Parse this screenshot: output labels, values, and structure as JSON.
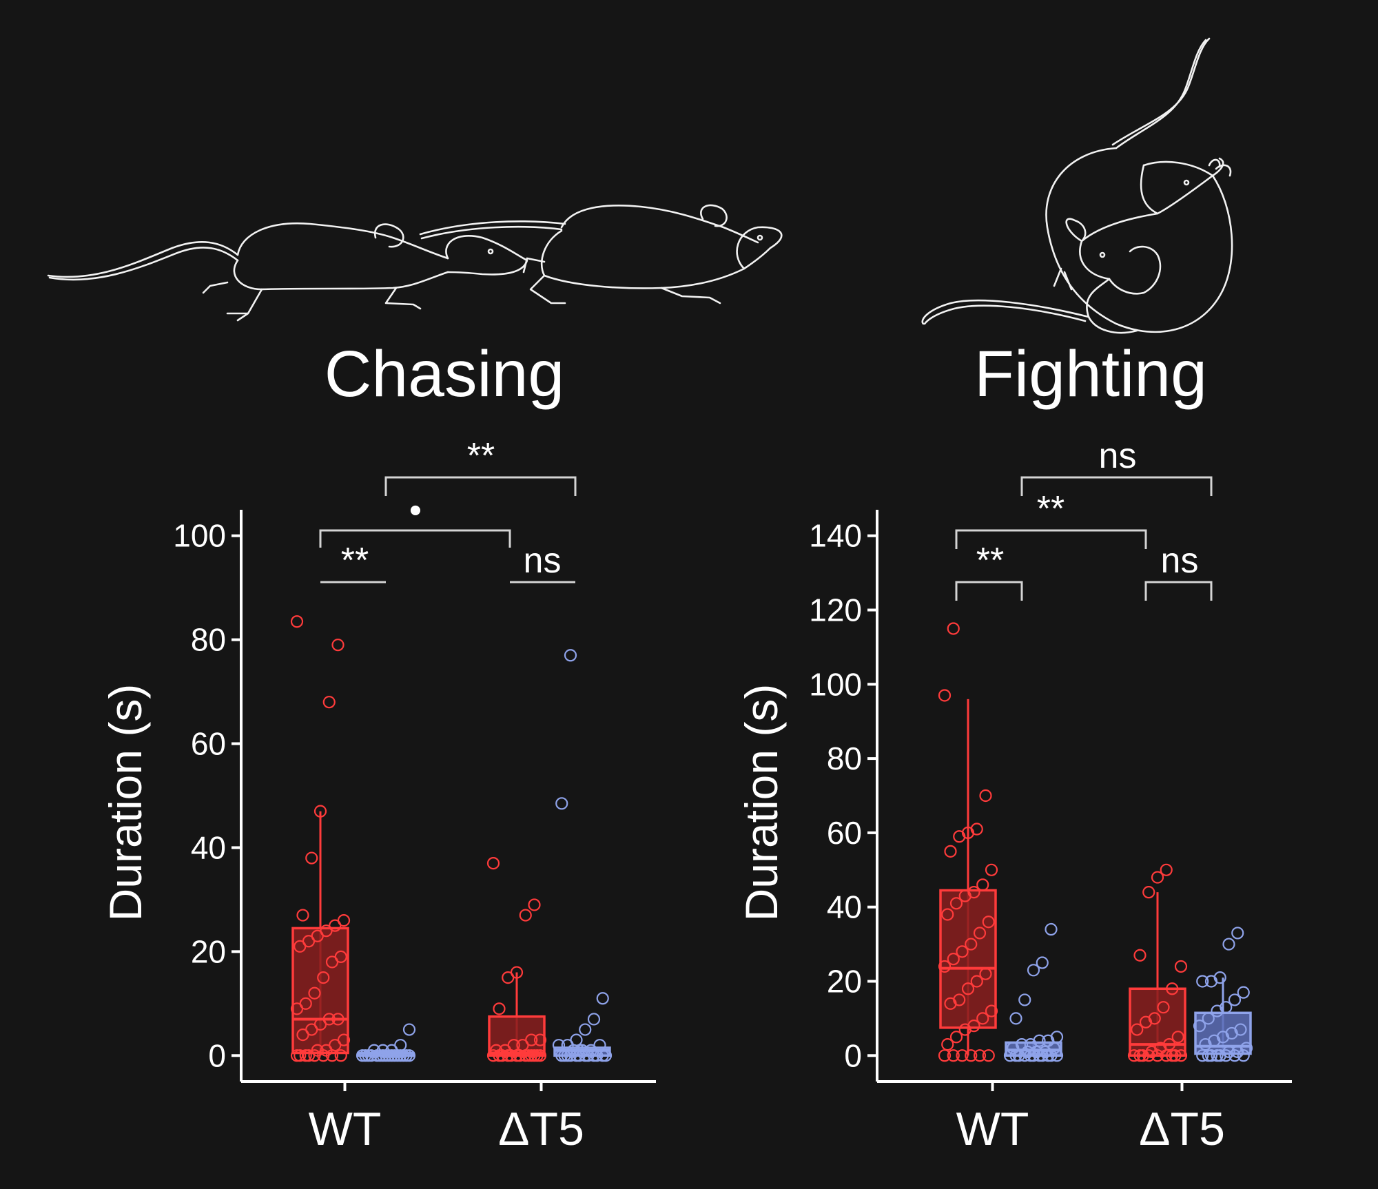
{
  "colors": {
    "background": "#151515",
    "wt_fill": "#8a1f1f",
    "wt_stroke": "#ff3b3b",
    "dt5_fill": "#5d6fb8",
    "dt5_stroke": "#8fa3ea",
    "text": "#ffffff",
    "bracket": "#d4d4d4"
  },
  "icons": [
    "chasing-mice-illustration",
    "fighting-mice-illustration"
  ],
  "chart_data": [
    {
      "type": "box",
      "title": "Chasing",
      "ylabel": "Duration (s)",
      "xlabel": "",
      "ylim": [
        -5,
        105
      ],
      "yticks": [
        "0",
        "20",
        "40",
        "60",
        "80",
        "100"
      ],
      "categories": [
        "WT",
        "ΔT5"
      ],
      "series": [
        {
          "name": "red",
          "color": "#ff3b3b",
          "boxes": [
            {
              "category": "WT",
              "q1": 0.5,
              "median": 7,
              "q3": 24.5,
              "whisker_low": 0,
              "whisker_high": 47,
              "points": [
                0,
                0,
                0,
                0,
                0,
                0,
                0,
                0,
                1,
                1,
                2,
                3,
                4,
                5,
                6,
                7,
                7,
                9,
                10,
                12,
                15,
                18,
                19,
                21,
                22,
                23,
                24,
                25,
                26,
                27,
                38,
                47,
                68,
                79,
                83.5
              ]
            },
            {
              "category": "ΔT5",
              "q1": 0,
              "median": 0.5,
              "q3": 7.5,
              "whisker_low": 0,
              "whisker_high": 16,
              "points": [
                0,
                0,
                0,
                0,
                0,
                0,
                0,
                0,
                0,
                0,
                0,
                0,
                0,
                1,
                1,
                2,
                2,
                3,
                3,
                9,
                15,
                16,
                27,
                29,
                37
              ]
            }
          ]
        },
        {
          "name": "blue",
          "color": "#8fa3ea",
          "boxes": [
            {
              "category": "WT",
              "q1": 0,
              "median": 0,
              "q3": 0.5,
              "whisker_low": 0,
              "whisker_high": 1,
              "points": [
                0,
                0,
                0,
                0,
                0,
                0,
                0,
                0,
                0,
                0,
                0,
                0,
                0,
                0,
                0,
                0,
                1,
                1,
                1,
                2,
                5
              ]
            },
            {
              "category": "ΔT5",
              "q1": 0,
              "median": 1,
              "q3": 1.5,
              "whisker_low": 0,
              "whisker_high": 2,
              "points": [
                0,
                0,
                0,
                0,
                0,
                0,
                0,
                0,
                0,
                0,
                0,
                0,
                1,
                1,
                1,
                2,
                2,
                2,
                3,
                5,
                7,
                11,
                48.5,
                77
              ]
            }
          ]
        }
      ],
      "significance": [
        {
          "label": "**",
          "from": "WT red",
          "to": "WT blue"
        },
        {
          "label": "ns",
          "from": "ΔT5 red",
          "to": "ΔT5 blue"
        },
        {
          "label": "•",
          "from": "WT red",
          "to": "ΔT5 red"
        },
        {
          "label": "**",
          "from": "WT blue",
          "to": "ΔT5 blue"
        }
      ]
    },
    {
      "type": "box",
      "title": "Fighting",
      "ylabel": "Duration (s)",
      "xlabel": "",
      "ylim": [
        -7,
        147
      ],
      "yticks": [
        "0",
        "20",
        "40",
        "60",
        "80",
        "100",
        "120",
        "140"
      ],
      "categories": [
        "WT",
        "ΔT5"
      ],
      "series": [
        {
          "name": "red",
          "color": "#ff3b3b",
          "boxes": [
            {
              "category": "WT",
              "q1": 7.5,
              "median": 23.5,
              "q3": 44.5,
              "whisker_low": 0,
              "whisker_high": 96,
              "points": [
                0,
                0,
                0,
                0,
                0,
                0,
                3,
                5,
                7,
                8,
                10,
                12,
                14,
                15,
                18,
                20,
                22,
                24,
                26,
                28,
                30,
                33,
                36,
                38,
                41,
                43,
                44,
                46,
                50,
                55,
                59,
                60,
                61,
                70,
                97,
                115
              ]
            },
            {
              "category": "ΔT5",
              "q1": 0,
              "median": 3,
              "q3": 18,
              "whisker_low": 0,
              "whisker_high": 44,
              "points": [
                0,
                0,
                0,
                0,
                0,
                0,
                0,
                0,
                0,
                1,
                2,
                3,
                5,
                7,
                9,
                10,
                13,
                18,
                24,
                27,
                44,
                48,
                50
              ]
            }
          ]
        },
        {
          "name": "blue",
          "color": "#8fa3ea",
          "boxes": [
            {
              "category": "WT",
              "q1": 0,
              "median": 1.5,
              "q3": 3.5,
              "whisker_low": 0,
              "whisker_high": 4,
              "points": [
                0,
                0,
                0,
                0,
                0,
                0,
                0,
                0,
                0,
                0,
                0,
                1,
                1,
                1,
                2,
                2,
                3,
                3,
                4,
                4,
                5,
                10,
                15,
                23,
                25,
                34
              ]
            },
            {
              "category": "ΔT5",
              "q1": 0.5,
              "median": 2.5,
              "q3": 11.5,
              "whisker_low": 0,
              "whisker_high": 21,
              "points": [
                0,
                0,
                0,
                0,
                0,
                0,
                0,
                0,
                1,
                1,
                2,
                3,
                4,
                5,
                6,
                7,
                8,
                10,
                12,
                13,
                15,
                17,
                20,
                20,
                21,
                30,
                33
              ]
            }
          ]
        }
      ],
      "significance": [
        {
          "label": "**",
          "from": "WT red",
          "to": "WT blue"
        },
        {
          "label": "ns",
          "from": "ΔT5 red",
          "to": "ΔT5 blue"
        },
        {
          "label": "**",
          "from": "WT red",
          "to": "ΔT5 red"
        },
        {
          "label": "ns",
          "from": "WT blue",
          "to": "ΔT5 blue"
        }
      ]
    }
  ]
}
